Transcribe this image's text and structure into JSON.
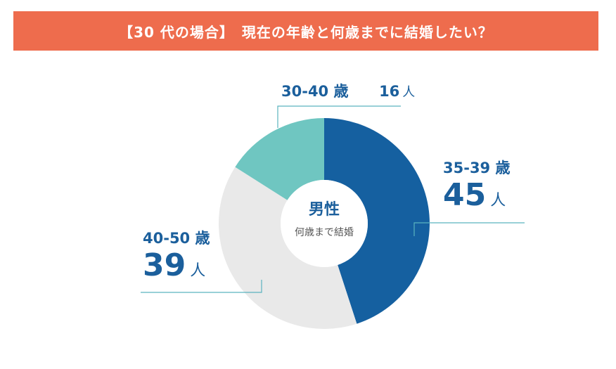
{
  "title": "【30 代の場合】　現在の年齢と何歳までに結婚したい？",
  "center": {
    "title": "男性",
    "subtitle": "何歳まで結婚"
  },
  "chart_data": {
    "type": "pie",
    "donut": true,
    "title": "【30 代の場合】　現在の年齢と何歳までに結婚したい？",
    "unit": "人",
    "slices": [
      {
        "label": "35-39 歳",
        "value": 45,
        "color": "#1560a0"
      },
      {
        "label": "40-50 歳",
        "value": 39,
        "color": "#e9e9e9"
      },
      {
        "label": "30-40 歳",
        "value": 16,
        "color": "#6fc6c1"
      }
    ]
  },
  "labels": {
    "s1": {
      "range": "35-39 歳",
      "value": "45",
      "unit": "人"
    },
    "s2": {
      "range": "40-50 歳",
      "value": "39",
      "unit": "人"
    },
    "s3": {
      "range": "30-40 歳",
      "value": "16",
      "unit": "人"
    }
  },
  "colors": {
    "title_bg": "#ee6c4d",
    "label_text": "#1b5f9c",
    "leader_line": "#5bb3bf",
    "center_text": "#1b5f9c"
  }
}
